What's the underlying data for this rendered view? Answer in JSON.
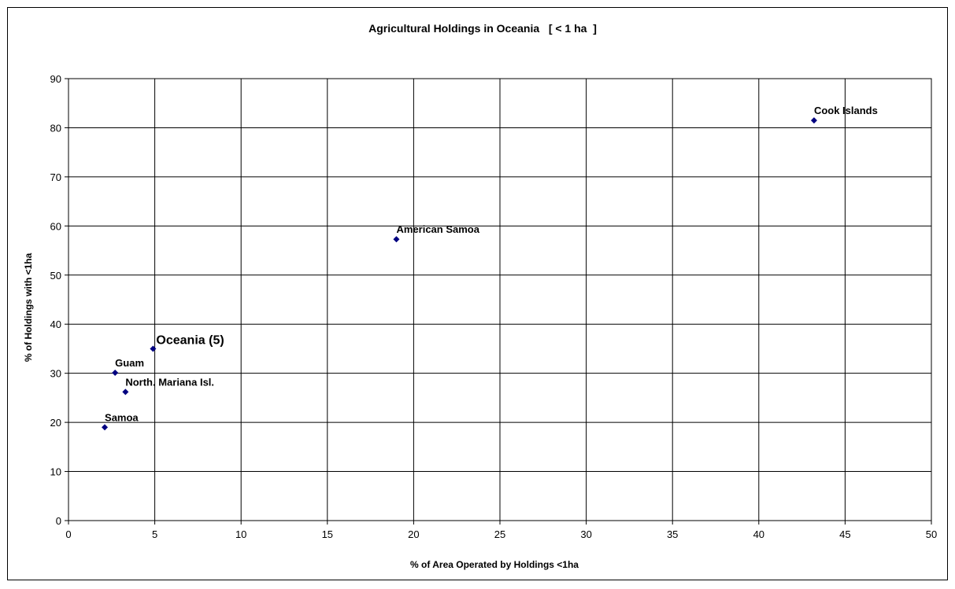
{
  "chart_data": {
    "type": "scatter",
    "title": "Agricultural Holdings in Oceania   [ < 1 ha  ]",
    "xlabel": "% of Area Operated by Holdings <1ha",
    "ylabel": "% of Holdings with <1ha",
    "xlim": [
      0,
      50
    ],
    "ylim": [
      0,
      90
    ],
    "xticks": [
      0,
      5,
      10,
      15,
      20,
      25,
      30,
      35,
      40,
      45,
      50
    ],
    "yticks": [
      0,
      10,
      20,
      30,
      40,
      50,
      60,
      70,
      80,
      90
    ],
    "grid": true,
    "marker_color": "#000080",
    "points": [
      {
        "label": "Cook Islands",
        "x": 43.2,
        "y": 81.5
      },
      {
        "label": "American Samoa",
        "x": 19.0,
        "y": 57.3
      },
      {
        "label": "Oceania (5)",
        "x": 4.9,
        "y": 35.0,
        "emphasis": true
      },
      {
        "label": "Guam",
        "x": 2.7,
        "y": 30.1
      },
      {
        "label": "North. Mariana Isl.",
        "x": 3.3,
        "y": 26.2
      },
      {
        "label": "Samoa",
        "x": 2.1,
        "y": 19.0
      }
    ]
  }
}
